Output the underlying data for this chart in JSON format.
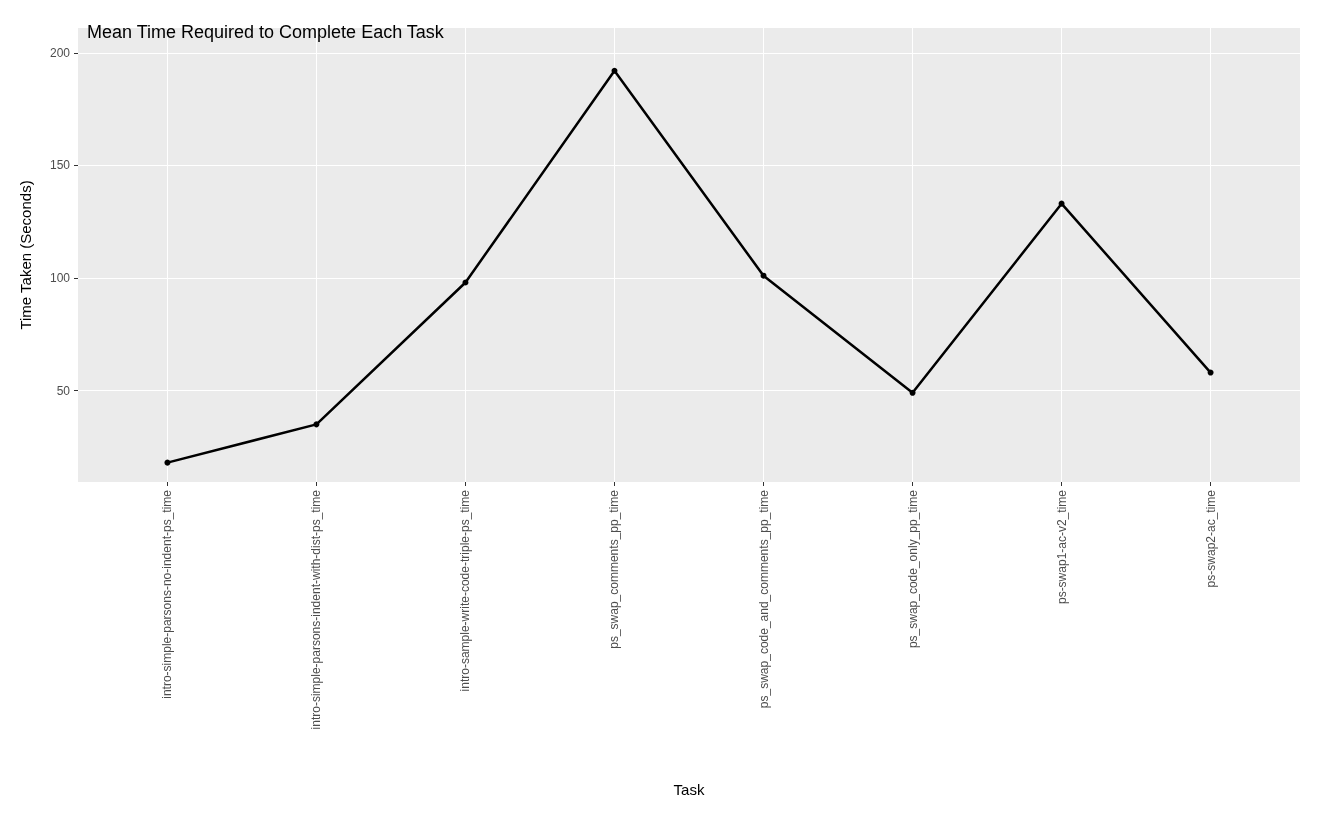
{
  "chart_data": {
    "type": "line",
    "title": "Mean Time Required to Complete Each Task",
    "xlabel": "Task",
    "ylabel": "Time Taken (Seconds)",
    "categories": [
      "intro-simple-parsons-no-indent-ps_time",
      "intro-simple-parsons-indent-with-dist-ps_time",
      "intro-sample-write-code-triple-ps_time",
      "ps_swap_comments_pp_time",
      "ps_swap_code_and_comments_pp_time",
      "ps_swap_code_only_pp_time",
      "ps-swap1-ac-v2_time",
      "ps-swap2-ac_time"
    ],
    "values": [
      18,
      35,
      98,
      192,
      101,
      49,
      133,
      58
    ],
    "color": "#000000",
    "ylim": [
      9.4,
      211
    ],
    "yticks": [
      50,
      100,
      150,
      200
    ],
    "grid": true,
    "marker": "circle",
    "line_style": "solid"
  }
}
